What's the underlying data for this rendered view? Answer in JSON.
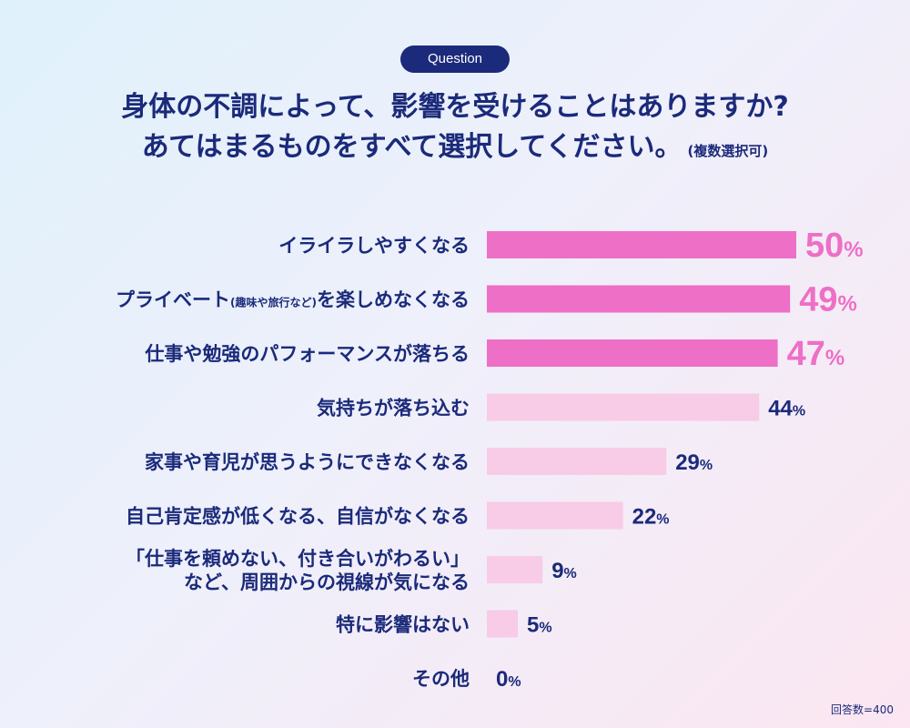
{
  "badge": "Question",
  "title_line1": "身体の不調によって、影響を受けることはありますか?",
  "title_line2": "あてはまるものをすべて選択してください。",
  "title_note": "(複数選択可)",
  "footnote": "回答数=400",
  "colors": {
    "highlight": "#ee6fc6",
    "normal": "#f8cbe6",
    "text": "#1b2a7a",
    "highlight_text": "#ee6fc6"
  },
  "chart_data": {
    "type": "bar",
    "orientation": "horizontal",
    "xlim": [
      0,
      100
    ],
    "unit": "%",
    "categories": [
      {
        "lines": [
          "イライラしやすくなる"
        ]
      },
      {
        "lines": [
          "プライベート(趣味や旅行など)を楽しめなくなる"
        ],
        "main_before": "プライベート",
        "small": "(趣味や旅行など)",
        "main_after": "を楽しめなくなる"
      },
      {
        "lines": [
          "仕事や勉強のパフォーマンスが落ちる"
        ]
      },
      {
        "lines": [
          "気持ちが落ち込む"
        ]
      },
      {
        "lines": [
          "家事や育児が思うようにできなくなる"
        ]
      },
      {
        "lines": [
          "自己肯定感が低くなる、自信がなくなる"
        ]
      },
      {
        "lines": [
          "「仕事を頼めない、付き合いがわるい」",
          "など、周囲からの視線が気になる"
        ]
      },
      {
        "lines": [
          "特に影響はない"
        ]
      },
      {
        "lines": [
          "その他"
        ]
      }
    ],
    "values": [
      50,
      49,
      47,
      44,
      29,
      22,
      9,
      5,
      0
    ],
    "highlighted": [
      true,
      true,
      true,
      false,
      false,
      false,
      false,
      false,
      false
    ]
  }
}
